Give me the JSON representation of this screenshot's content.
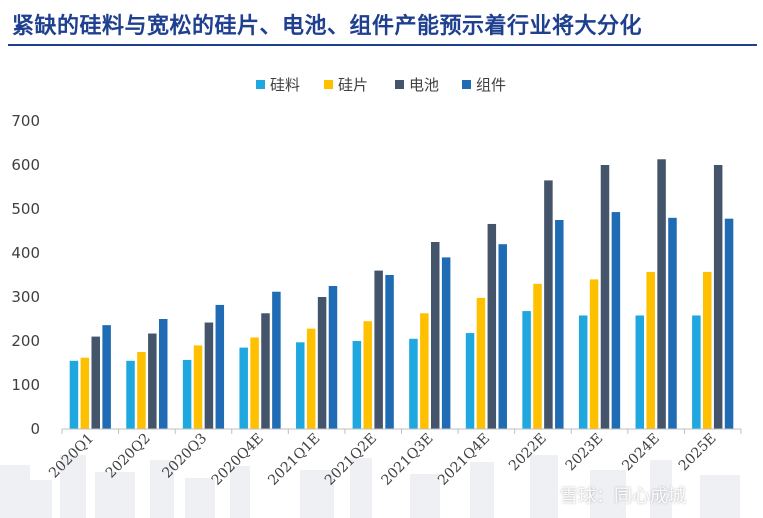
{
  "title": "紧缺的硅料与宽松的硅片、电池、组件产能预示着行业将大分化",
  "watermark": "雪球：同心成城",
  "colors": {
    "title": "#1f3f8f",
    "axis": "#bfbfbf",
    "text": "#404040"
  },
  "chart_data": {
    "type": "bar",
    "categories": [
      "2020Q1",
      "2020Q2",
      "2020Q3",
      "2020Q4E",
      "2021Q1E",
      "2021Q2E",
      "2021Q3E",
      "2021Q4E",
      "2022E",
      "2023E",
      "2024E",
      "2025E"
    ],
    "series": [
      {
        "name": "硅料",
        "color": "#1fa8e0",
        "values": [
          155,
          155,
          157,
          185,
          197,
          200,
          205,
          218,
          268,
          258,
          258,
          258
        ]
      },
      {
        "name": "硅片",
        "color": "#ffc000",
        "values": [
          162,
          175,
          190,
          208,
          228,
          245,
          263,
          298,
          330,
          340,
          357,
          357
        ]
      },
      {
        "name": "电池",
        "color": "#44546a",
        "values": [
          210,
          217,
          242,
          263,
          300,
          360,
          425,
          466,
          565,
          600,
          613,
          600
        ]
      },
      {
        "name": "组件",
        "color": "#1f6cb5",
        "values": [
          236,
          250,
          282,
          312,
          325,
          350,
          390,
          420,
          475,
          493,
          480,
          478
        ]
      }
    ],
    "ylim": [
      0,
      700
    ],
    "yticks": [
      0,
      100,
      200,
      300,
      400,
      500,
      600,
      700
    ],
    "legend": "top-center",
    "grid": false
  }
}
